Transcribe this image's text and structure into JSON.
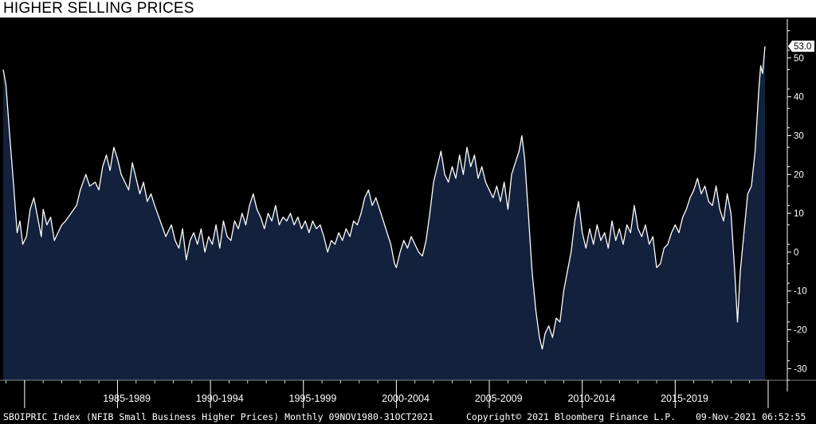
{
  "title": "HIGHER SELLING PRICES",
  "footer": {
    "left": "SBOIPRIC Index (NFIB Small Business Higher Prices) Monthly 09NOV1980-31OCT2021",
    "center": "Copyright© 2021 Bloomberg Finance L.P.",
    "right": "09-Nov-2021 06:52:55"
  },
  "colors": {
    "background": "#000000",
    "area_fill": "#13213d",
    "line": "#ffffff",
    "axis_text": "#ffffff"
  },
  "chart_data": {
    "type": "area",
    "title": "HIGHER SELLING PRICES",
    "series": [
      {
        "name": "SBOIPRIC Index",
        "points": [
          [
            1980.85,
            47
          ],
          [
            1981.0,
            43
          ],
          [
            1981.2,
            30
          ],
          [
            1981.4,
            18
          ],
          [
            1981.6,
            5
          ],
          [
            1981.75,
            8
          ],
          [
            1981.9,
            2
          ],
          [
            1982.1,
            4
          ],
          [
            1982.3,
            11
          ],
          [
            1982.5,
            14
          ],
          [
            1982.7,
            9
          ],
          [
            1982.9,
            4
          ],
          [
            1983.0,
            11
          ],
          [
            1983.2,
            7
          ],
          [
            1983.4,
            9
          ],
          [
            1983.6,
            3
          ],
          [
            1983.8,
            5
          ],
          [
            1984.0,
            7
          ],
          [
            1984.2,
            8
          ],
          [
            1984.5,
            10
          ],
          [
            1984.8,
            12
          ],
          [
            1985.0,
            16
          ],
          [
            1985.3,
            20
          ],
          [
            1985.5,
            17
          ],
          [
            1985.8,
            18
          ],
          [
            1986.0,
            16
          ],
          [
            1986.2,
            22
          ],
          [
            1986.4,
            25
          ],
          [
            1986.6,
            21
          ],
          [
            1986.8,
            27
          ],
          [
            1987.0,
            24
          ],
          [
            1987.2,
            20
          ],
          [
            1987.4,
            18
          ],
          [
            1987.6,
            16
          ],
          [
            1987.8,
            23
          ],
          [
            1988.0,
            19
          ],
          [
            1988.2,
            15
          ],
          [
            1988.4,
            18
          ],
          [
            1988.6,
            13
          ],
          [
            1988.8,
            15
          ],
          [
            1989.0,
            12
          ],
          [
            1989.3,
            8
          ],
          [
            1989.6,
            4
          ],
          [
            1989.9,
            7
          ],
          [
            1990.1,
            3
          ],
          [
            1990.3,
            1
          ],
          [
            1990.5,
            6
          ],
          [
            1990.7,
            -2
          ],
          [
            1990.9,
            3
          ],
          [
            1991.1,
            5
          ],
          [
            1991.3,
            2
          ],
          [
            1991.5,
            6
          ],
          [
            1991.7,
            0
          ],
          [
            1991.9,
            4
          ],
          [
            1992.1,
            2
          ],
          [
            1992.3,
            7
          ],
          [
            1992.5,
            1
          ],
          [
            1992.7,
            8
          ],
          [
            1992.9,
            4
          ],
          [
            1993.1,
            3
          ],
          [
            1993.3,
            8
          ],
          [
            1993.5,
            6
          ],
          [
            1993.7,
            10
          ],
          [
            1993.9,
            7
          ],
          [
            1994.1,
            12
          ],
          [
            1994.3,
            15
          ],
          [
            1994.5,
            11
          ],
          [
            1994.7,
            9
          ],
          [
            1994.9,
            6
          ],
          [
            1995.1,
            10
          ],
          [
            1995.3,
            8
          ],
          [
            1995.5,
            12
          ],
          [
            1995.7,
            7
          ],
          [
            1995.9,
            9
          ],
          [
            1996.1,
            8
          ],
          [
            1996.3,
            10
          ],
          [
            1996.5,
            7
          ],
          [
            1996.7,
            9
          ],
          [
            1996.9,
            6
          ],
          [
            1997.1,
            8
          ],
          [
            1997.3,
            5
          ],
          [
            1997.5,
            8
          ],
          [
            1997.7,
            6
          ],
          [
            1997.9,
            7
          ],
          [
            1998.1,
            4
          ],
          [
            1998.3,
            0
          ],
          [
            1998.5,
            3
          ],
          [
            1998.7,
            2
          ],
          [
            1998.9,
            5
          ],
          [
            1999.1,
            3
          ],
          [
            1999.3,
            6
          ],
          [
            1999.5,
            4
          ],
          [
            1999.7,
            8
          ],
          [
            1999.9,
            7
          ],
          [
            2000.1,
            10
          ],
          [
            2000.3,
            14
          ],
          [
            2000.5,
            16
          ],
          [
            2000.7,
            12
          ],
          [
            2000.9,
            14
          ],
          [
            2001.1,
            11
          ],
          [
            2001.3,
            8
          ],
          [
            2001.5,
            5
          ],
          [
            2001.7,
            2
          ],
          [
            2001.9,
            -3
          ],
          [
            2002.0,
            -4
          ],
          [
            2002.2,
            0
          ],
          [
            2002.4,
            3
          ],
          [
            2002.6,
            1
          ],
          [
            2002.8,
            4
          ],
          [
            2003.0,
            2
          ],
          [
            2003.2,
            0
          ],
          [
            2003.4,
            -1
          ],
          [
            2003.6,
            3
          ],
          [
            2003.8,
            10
          ],
          [
            2004.0,
            18
          ],
          [
            2004.2,
            22
          ],
          [
            2004.4,
            26
          ],
          [
            2004.6,
            20
          ],
          [
            2004.8,
            18
          ],
          [
            2005.0,
            22
          ],
          [
            2005.2,
            19
          ],
          [
            2005.4,
            25
          ],
          [
            2005.6,
            20
          ],
          [
            2005.8,
            27
          ],
          [
            2006.0,
            22
          ],
          [
            2006.2,
            25
          ],
          [
            2006.4,
            19
          ],
          [
            2006.6,
            22
          ],
          [
            2006.8,
            18
          ],
          [
            2007.0,
            16
          ],
          [
            2007.2,
            14
          ],
          [
            2007.4,
            17
          ],
          [
            2007.6,
            13
          ],
          [
            2007.8,
            18
          ],
          [
            2008.0,
            11
          ],
          [
            2008.2,
            20
          ],
          [
            2008.4,
            23
          ],
          [
            2008.6,
            26
          ],
          [
            2008.75,
            30
          ],
          [
            2008.9,
            24
          ],
          [
            2009.1,
            10
          ],
          [
            2009.3,
            -5
          ],
          [
            2009.5,
            -15
          ],
          [
            2009.7,
            -22
          ],
          [
            2009.85,
            -25
          ],
          [
            2010.0,
            -21
          ],
          [
            2010.2,
            -19
          ],
          [
            2010.4,
            -22
          ],
          [
            2010.6,
            -17
          ],
          [
            2010.8,
            -18
          ],
          [
            2011.0,
            -10
          ],
          [
            2011.2,
            -5
          ],
          [
            2011.4,
            0
          ],
          [
            2011.6,
            8
          ],
          [
            2011.8,
            13
          ],
          [
            2012.0,
            5
          ],
          [
            2012.2,
            1
          ],
          [
            2012.4,
            6
          ],
          [
            2012.6,
            2
          ],
          [
            2012.8,
            7
          ],
          [
            2013.0,
            3
          ],
          [
            2013.2,
            5
          ],
          [
            2013.4,
            1
          ],
          [
            2013.6,
            8
          ],
          [
            2013.8,
            3
          ],
          [
            2014.0,
            6
          ],
          [
            2014.2,
            2
          ],
          [
            2014.4,
            7
          ],
          [
            2014.6,
            5
          ],
          [
            2014.8,
            12
          ],
          [
            2015.0,
            6
          ],
          [
            2015.2,
            4
          ],
          [
            2015.4,
            7
          ],
          [
            2015.6,
            2
          ],
          [
            2015.8,
            4
          ],
          [
            2016.0,
            -4
          ],
          [
            2016.2,
            -3
          ],
          [
            2016.4,
            1
          ],
          [
            2016.6,
            2
          ],
          [
            2016.8,
            5
          ],
          [
            2017.0,
            7
          ],
          [
            2017.2,
            5
          ],
          [
            2017.4,
            9
          ],
          [
            2017.6,
            11
          ],
          [
            2017.8,
            14
          ],
          [
            2018.0,
            16
          ],
          [
            2018.2,
            19
          ],
          [
            2018.4,
            15
          ],
          [
            2018.6,
            17
          ],
          [
            2018.8,
            13
          ],
          [
            2019.0,
            12
          ],
          [
            2019.2,
            17
          ],
          [
            2019.4,
            11
          ],
          [
            2019.6,
            8
          ],
          [
            2019.8,
            15
          ],
          [
            2020.0,
            10
          ],
          [
            2020.2,
            -5
          ],
          [
            2020.35,
            -18
          ],
          [
            2020.5,
            -5
          ],
          [
            2020.7,
            5
          ],
          [
            2020.9,
            15
          ],
          [
            2021.1,
            17
          ],
          [
            2021.3,
            26
          ],
          [
            2021.5,
            42
          ],
          [
            2021.6,
            48
          ],
          [
            2021.7,
            46
          ],
          [
            2021.83,
            53
          ]
        ]
      }
    ],
    "last_value_label": "53.0",
    "ylim": [
      -33,
      60
    ],
    "yticks": [
      -30,
      -20,
      -10,
      0,
      10,
      20,
      30,
      40,
      50
    ],
    "xlim": [
      1980.85,
      2022.5
    ],
    "x_period_boundaries": [
      1982,
      1987,
      1992,
      1997,
      2002,
      2007,
      2012,
      2017,
      2022
    ],
    "x_period_labels": [
      "1985-1989",
      "1990-1994",
      "1995-1999",
      "2000-2004",
      "2005-2009",
      "2010-2014",
      "2015-2019"
    ],
    "x_period_starts": [
      1985,
      1990,
      1995,
      2000,
      2005,
      2010,
      2015
    ],
    "grid": false,
    "legend": "none"
  }
}
